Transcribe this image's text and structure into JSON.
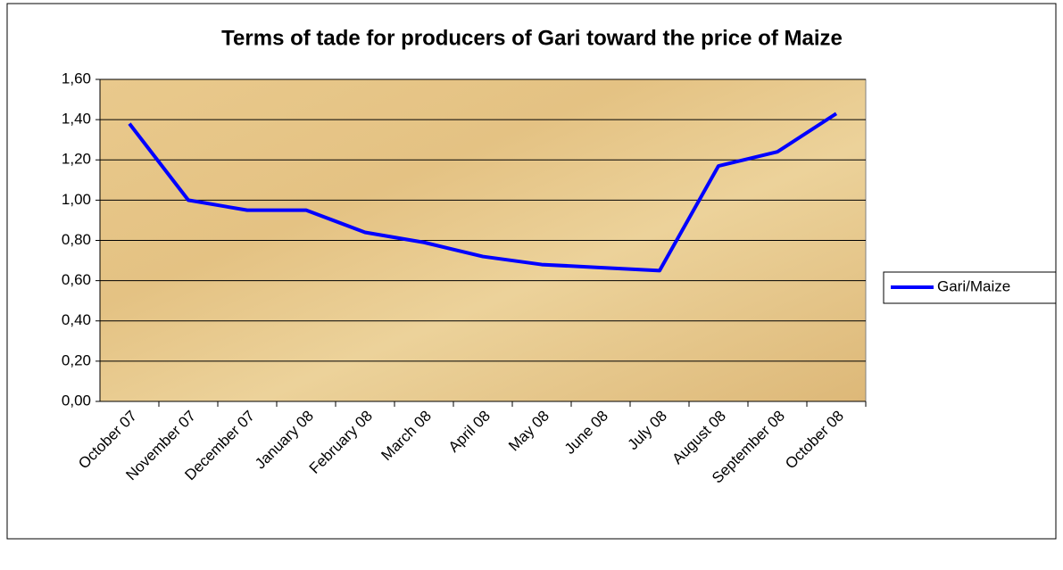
{
  "chart_data": {
    "type": "line",
    "title": "Terms of tade for producers of Gari toward the price of Maize",
    "categories": [
      "October 07",
      "November 07",
      "December 07",
      "January 08",
      "February 08",
      "March 08",
      "April 08",
      "May 08",
      "June 08",
      "July 08",
      "August 08",
      "September 08",
      "October 08"
    ],
    "series": [
      {
        "name": "Gari/Maize",
        "color": "#0000ff",
        "values": [
          1.38,
          1.0,
          0.95,
          0.95,
          0.84,
          0.79,
          0.72,
          0.68,
          0.665,
          0.65,
          1.17,
          1.24,
          1.43
        ]
      }
    ],
    "ylim": [
      0,
      1.6
    ],
    "yticks": [
      {
        "value": 0,
        "label": "0,00"
      },
      {
        "value": 0.2,
        "label": "0,20"
      },
      {
        "value": 0.4,
        "label": "0,40"
      },
      {
        "value": 0.6,
        "label": "0,60"
      },
      {
        "value": 0.8,
        "label": "0,80"
      },
      {
        "value": 1.0,
        "label": "1,00"
      },
      {
        "value": 1.2,
        "label": "1,20"
      },
      {
        "value": 1.4,
        "label": "1,40"
      },
      {
        "value": 1.6,
        "label": "1,60"
      }
    ],
    "grid": true,
    "legend": "right"
  }
}
